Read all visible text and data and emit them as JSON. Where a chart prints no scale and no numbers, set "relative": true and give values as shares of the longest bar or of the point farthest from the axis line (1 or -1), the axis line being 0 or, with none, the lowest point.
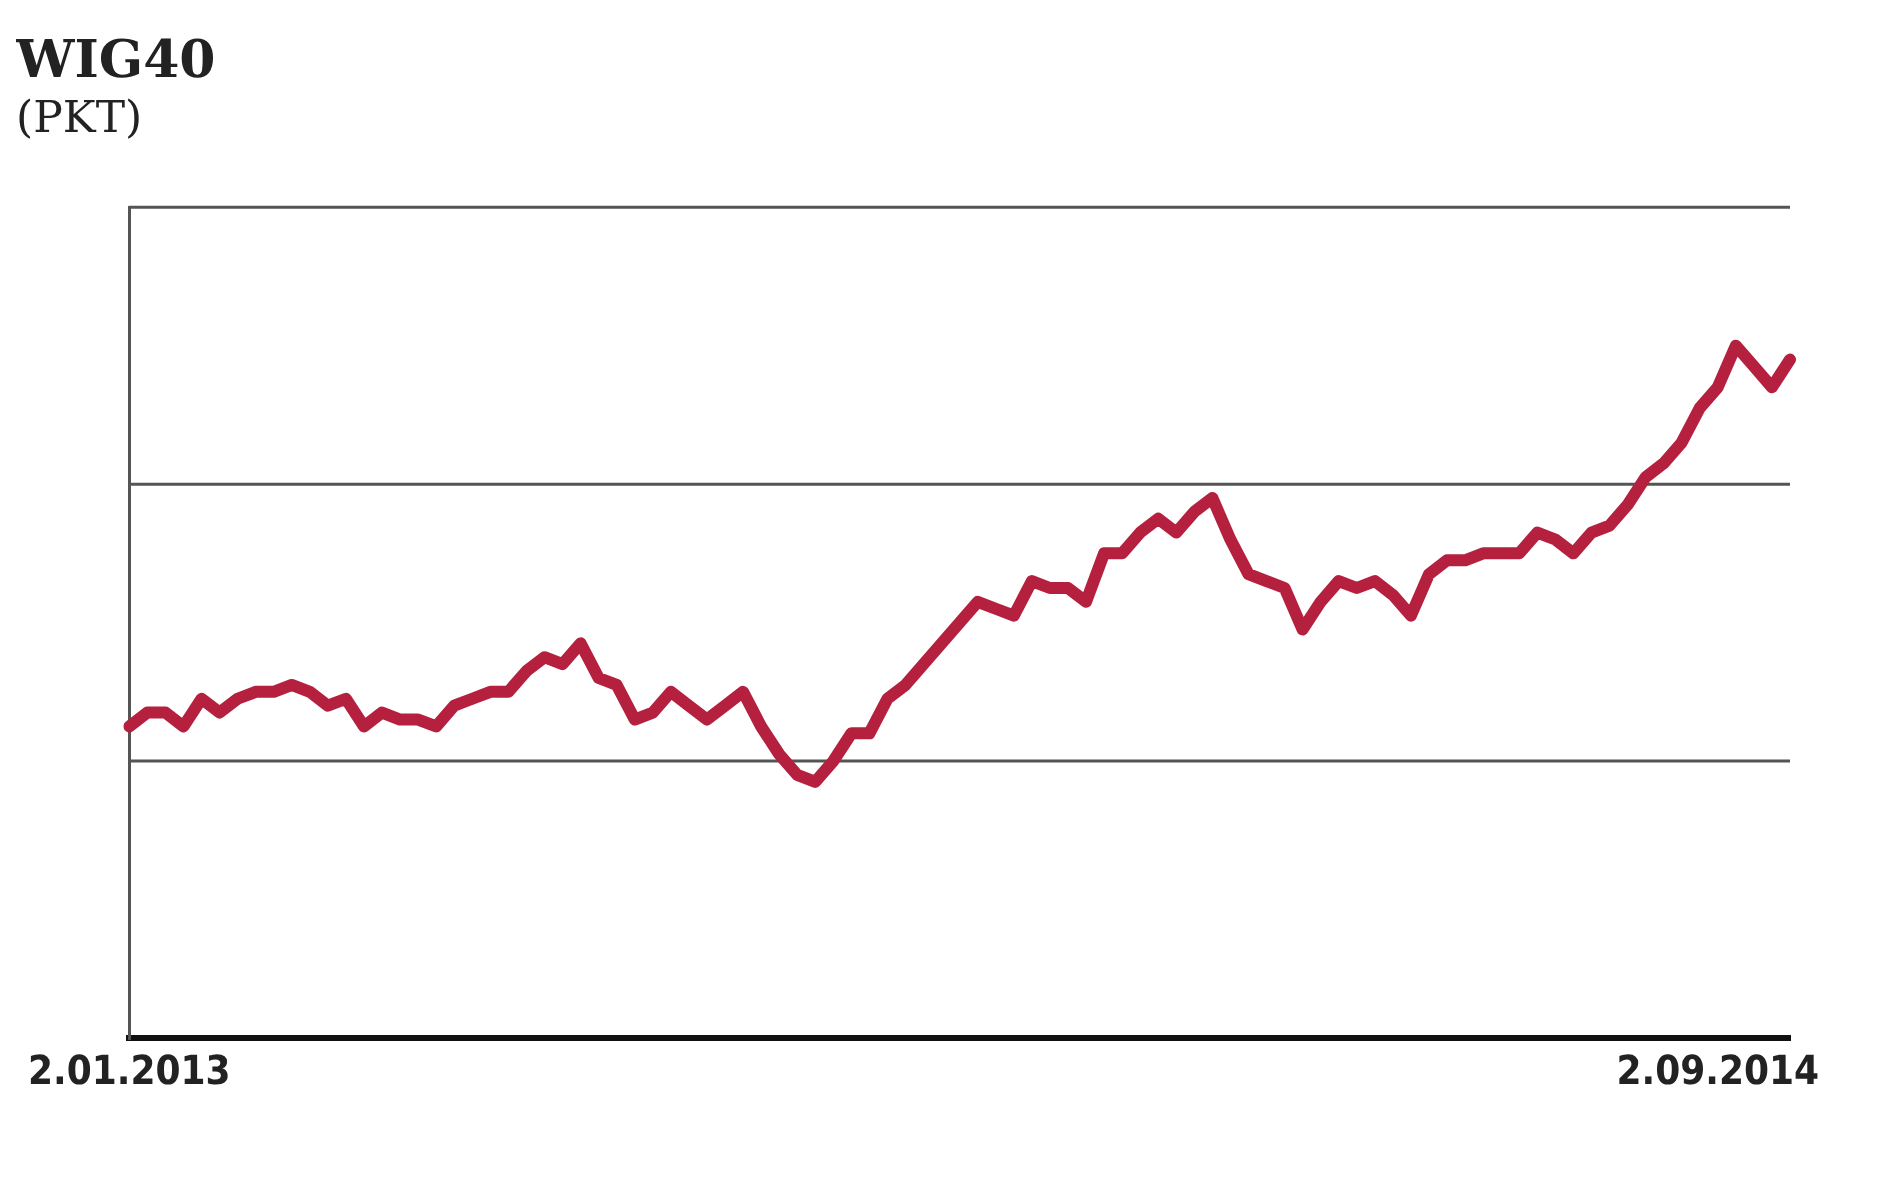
{
  "chart_data": {
    "type": "line",
    "title": "WIG40",
    "subtitle": "(PKT)",
    "relative": true,
    "ref_lines": [
      {
        "axis": "y",
        "value": 0.4,
        "color": "#555555"
      },
      {
        "axis": "y",
        "value": 0.8,
        "color": "#555555"
      },
      {
        "axis": "y",
        "value": 1.2,
        "color": "#555555"
      }
    ],
    "legend": false,
    "marker": "none",
    "line_style": "solid",
    "categories": [
      "2.01.2013",
      null,
      null,
      null,
      null,
      null,
      null,
      null,
      null,
      null,
      null,
      null,
      null,
      null,
      null,
      null,
      null,
      null,
      null,
      null,
      null,
      null,
      null,
      null,
      null,
      null,
      null,
      null,
      null,
      null,
      null,
      null,
      null,
      null,
      null,
      null,
      null,
      null,
      null,
      null,
      null,
      null,
      null,
      null,
      null,
      null,
      null,
      null,
      null,
      null,
      null,
      null,
      null,
      null,
      null,
      null,
      null,
      null,
      null,
      null,
      null,
      null,
      null,
      null,
      null,
      null,
      null,
      null,
      null,
      null,
      null,
      null,
      null,
      null,
      null,
      null,
      null,
      null,
      null,
      null,
      null,
      null,
      null,
      null,
      null,
      null,
      null,
      null,
      "2.09.2014",
      null,
      null,
      null,
      null
    ],
    "series": [
      {
        "color": "#b5203f",
        "values": [
          0.45,
          0.47,
          0.47,
          0.45,
          0.49,
          0.47,
          0.49,
          0.5,
          0.5,
          0.51,
          0.5,
          0.48,
          0.49,
          0.45,
          0.47,
          0.46,
          0.46,
          0.45,
          0.48,
          0.49,
          0.5,
          0.5,
          0.53,
          0.55,
          0.54,
          0.57,
          0.52,
          0.51,
          0.46,
          0.47,
          0.5,
          0.48,
          0.46,
          0.48,
          0.5,
          0.45,
          0.41,
          0.38,
          0.37,
          0.4,
          0.44,
          0.44,
          0.49,
          0.51,
          0.54,
          0.57,
          0.6,
          0.63,
          0.62,
          0.61,
          0.66,
          0.65,
          0.65,
          0.63,
          0.7,
          0.7,
          0.73,
          0.75,
          0.73,
          0.76,
          0.78,
          0.72,
          0.67,
          0.66,
          0.65,
          0.59,
          0.63,
          0.66,
          0.65,
          0.66,
          0.64,
          0.61,
          0.67,
          0.69,
          0.69,
          0.7,
          0.7,
          0.7,
          0.73,
          0.72,
          0.7,
          0.73,
          0.74,
          0.77,
          0.81,
          0.83,
          0.86,
          0.91,
          0.94,
          1,
          0.97,
          0.94,
          0.98
        ]
      }
    ]
  }
}
